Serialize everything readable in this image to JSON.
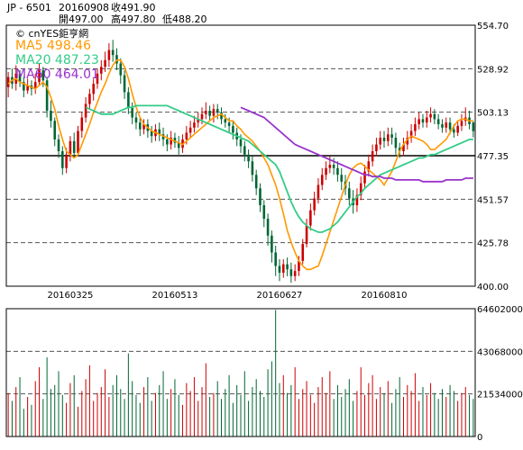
{
  "header": {
    "symbol": "JP - 6501",
    "date": "20160908",
    "close": "收491.90",
    "open": "開497.00",
    "high": "高497.80",
    "low": "低488.20"
  },
  "brand": "cnYES鉅亨網",
  "legend": {
    "ma5": "MA5 498.46",
    "ma20": "MA20 487.23",
    "ma60": "MA60 464.01"
  },
  "colors": {
    "up": "#cc0000",
    "down": "#006633",
    "ma5": "#ff9900",
    "ma20": "#33cc88",
    "ma60": "#9933cc",
    "grid": "#555555"
  },
  "chart_data": [
    {
      "type": "candlestick",
      "ylim": [
        400.0,
        554.7
      ],
      "yticks": [
        "554.70",
        "528.92",
        "503.13",
        "477.35",
        "451.57",
        "425.78",
        "400.00"
      ],
      "xticks": [
        "20160325",
        "20160513",
        "20160627",
        "20160810"
      ],
      "reference_level": 477.35,
      "series": [
        {
          "name": "MA5",
          "values": [
            520,
            522,
            523,
            521,
            520,
            519,
            518,
            517,
            519,
            521,
            518,
            512,
            505,
            495,
            487,
            480,
            478,
            476,
            478,
            484,
            490,
            496,
            503,
            509,
            515,
            520,
            526,
            531,
            534,
            534,
            530,
            523,
            514,
            506,
            500,
            496,
            494,
            492,
            491,
            490,
            489,
            488,
            487,
            486,
            485,
            484,
            486,
            488,
            490,
            492,
            494,
            496,
            498,
            500,
            501,
            502,
            500,
            498,
            498,
            495,
            493,
            490,
            488,
            486,
            483,
            480,
            476,
            472,
            466,
            460,
            452,
            443,
            433,
            426,
            420,
            415,
            412,
            410,
            410,
            411,
            412,
            418,
            425,
            432,
            439,
            446,
            453,
            460,
            466,
            470,
            472,
            473,
            471,
            469,
            467,
            465,
            463,
            460,
            464,
            468,
            474,
            480,
            484,
            487,
            489,
            488,
            487,
            486,
            484,
            481,
            481,
            483,
            485,
            487,
            491,
            495,
            498,
            499,
            499,
            498,
            498
          ]
        },
        {
          "name": "MA20",
          "values": [
            null,
            null,
            null,
            null,
            null,
            null,
            null,
            null,
            null,
            null,
            null,
            null,
            null,
            null,
            null,
            null,
            null,
            null,
            null,
            null,
            506,
            505,
            504,
            503,
            502,
            502,
            502,
            502,
            503,
            504,
            505,
            506,
            506,
            507,
            507,
            507,
            507,
            507,
            507,
            507,
            507,
            507,
            506,
            505,
            504,
            503,
            502,
            501,
            500,
            499,
            498,
            497,
            496,
            495,
            494,
            493,
            492,
            491,
            490,
            489,
            488,
            487,
            486,
            484,
            482,
            480,
            478,
            476,
            474,
            472,
            468,
            462,
            456,
            450,
            445,
            441,
            438,
            436,
            434,
            433,
            432,
            432,
            433,
            434,
            436,
            438,
            441,
            444,
            447,
            450,
            453,
            455,
            458,
            460,
            462,
            464,
            466,
            467,
            468,
            469,
            470,
            471,
            472,
            473,
            474,
            475,
            476,
            476,
            477,
            478,
            478,
            479,
            480,
            481,
            482,
            483,
            484,
            485,
            486,
            487,
            487
          ]
        },
        {
          "name": "MA60",
          "values": [
            null,
            null,
            null,
            null,
            null,
            null,
            null,
            null,
            null,
            null,
            null,
            null,
            null,
            null,
            null,
            null,
            null,
            null,
            null,
            null,
            null,
            null,
            null,
            null,
            null,
            null,
            null,
            null,
            null,
            null,
            null,
            null,
            null,
            null,
            null,
            null,
            null,
            null,
            null,
            null,
            null,
            null,
            null,
            null,
            null,
            null,
            null,
            null,
            null,
            null,
            null,
            null,
            null,
            null,
            null,
            null,
            null,
            null,
            null,
            null,
            506,
            505,
            504,
            503,
            502,
            501,
            500,
            498,
            496,
            494,
            492,
            490,
            488,
            486,
            484,
            483,
            482,
            481,
            480,
            479,
            478,
            477,
            476,
            475,
            474,
            473,
            472,
            471,
            470,
            469,
            468,
            467,
            466,
            466,
            465,
            465,
            465,
            464,
            464,
            464,
            463,
            463,
            463,
            463,
            463,
            463,
            463,
            462,
            462,
            462,
            462,
            462,
            462,
            463,
            463,
            463,
            463,
            463,
            464,
            464,
            464
          ]
        }
      ],
      "candles": [
        [
          518,
          524,
          527,
          512
        ],
        [
          524,
          520,
          529,
          517
        ],
        [
          520,
          526,
          531,
          516
        ],
        [
          526,
          521,
          528,
          518
        ],
        [
          521,
          516,
          524,
          512
        ],
        [
          516,
          519,
          523,
          514
        ],
        [
          519,
          517,
          522,
          513
        ],
        [
          517,
          521,
          526,
          514
        ],
        [
          521,
          528,
          532,
          519
        ],
        [
          528,
          522,
          530,
          518
        ],
        [
          522,
          504,
          524,
          500
        ],
        [
          504,
          498,
          510,
          494
        ],
        [
          498,
          487,
          500,
          483
        ],
        [
          487,
          480,
          490,
          476
        ],
        [
          480,
          470,
          483,
          466
        ],
        [
          470,
          478,
          482,
          467
        ],
        [
          478,
          486,
          489,
          474
        ],
        [
          486,
          479,
          491,
          476
        ],
        [
          479,
          492,
          495,
          477
        ],
        [
          492,
          500,
          503,
          488
        ],
        [
          500,
          508,
          512,
          497
        ],
        [
          508,
          514,
          517,
          505
        ],
        [
          514,
          520,
          523,
          510
        ],
        [
          520,
          526,
          529,
          517
        ],
        [
          526,
          530,
          534,
          522
        ],
        [
          530,
          534,
          539,
          527
        ],
        [
          534,
          540,
          544,
          530
        ],
        [
          540,
          537,
          546,
          533
        ],
        [
          537,
          532,
          541,
          528
        ],
        [
          532,
          525,
          535,
          520
        ],
        [
          525,
          515,
          528,
          511
        ],
        [
          515,
          506,
          518,
          502
        ],
        [
          506,
          500,
          509,
          496
        ],
        [
          500,
          497,
          503,
          493
        ],
        [
          497,
          493,
          500,
          489
        ],
        [
          493,
          496,
          499,
          490
        ],
        [
          496,
          492,
          499,
          488
        ],
        [
          492,
          489,
          495,
          485
        ],
        [
          489,
          493,
          496,
          486
        ],
        [
          493,
          490,
          497,
          486
        ],
        [
          490,
          487,
          494,
          483
        ],
        [
          487,
          484,
          490,
          480
        ],
        [
          484,
          488,
          492,
          481
        ],
        [
          488,
          485,
          491,
          482
        ],
        [
          485,
          482,
          489,
          478
        ],
        [
          482,
          487,
          490,
          479
        ],
        [
          487,
          491,
          495,
          484
        ],
        [
          491,
          494,
          498,
          488
        ],
        [
          494,
          497,
          501,
          491
        ],
        [
          497,
          499,
          503,
          494
        ],
        [
          499,
          502,
          506,
          496
        ],
        [
          502,
          504,
          509,
          499
        ],
        [
          504,
          501,
          507,
          498
        ],
        [
          501,
          505,
          508,
          497
        ],
        [
          505,
          503,
          508,
          499
        ],
        [
          503,
          499,
          506,
          496
        ],
        [
          499,
          497,
          502,
          494
        ],
        [
          497,
          495,
          500,
          491
        ],
        [
          495,
          491,
          498,
          487
        ],
        [
          491,
          487,
          494,
          483
        ],
        [
          487,
          483,
          490,
          479
        ],
        [
          483,
          478,
          486,
          474
        ],
        [
          478,
          474,
          481,
          470
        ],
        [
          474,
          466,
          477,
          462
        ],
        [
          466,
          458,
          469,
          454
        ],
        [
          458,
          448,
          461,
          444
        ],
        [
          448,
          440,
          451,
          435
        ],
        [
          440,
          430,
          443,
          424
        ],
        [
          430,
          420,
          433,
          414
        ],
        [
          420,
          412,
          424,
          406
        ],
        [
          412,
          408,
          416,
          403
        ],
        [
          408,
          413,
          416,
          405
        ],
        [
          413,
          410,
          417,
          406
        ],
        [
          410,
          406,
          414,
          402
        ],
        [
          406,
          409,
          413,
          403
        ],
        [
          409,
          415,
          418,
          406
        ],
        [
          415,
          425,
          428,
          413
        ],
        [
          425,
          436,
          440,
          423
        ],
        [
          436,
          445,
          449,
          433
        ],
        [
          445,
          452,
          456,
          442
        ],
        [
          452,
          460,
          464,
          449
        ],
        [
          460,
          466,
          470,
          457
        ],
        [
          466,
          470,
          474,
          463
        ],
        [
          470,
          472,
          477,
          467
        ],
        [
          472,
          470,
          476,
          466
        ],
        [
          470,
          466,
          474,
          462
        ],
        [
          466,
          462,
          470,
          457
        ],
        [
          462,
          458,
          466,
          454
        ],
        [
          458,
          452,
          462,
          448
        ],
        [
          452,
          448,
          457,
          443
        ],
        [
          448,
          454,
          458,
          444
        ],
        [
          454,
          461,
          465,
          451
        ],
        [
          461,
          468,
          472,
          458
        ],
        [
          468,
          474,
          478,
          465
        ],
        [
          474,
          480,
          484,
          471
        ],
        [
          480,
          484,
          488,
          477
        ],
        [
          484,
          488,
          492,
          481
        ],
        [
          488,
          486,
          492,
          482
        ],
        [
          486,
          490,
          494,
          483
        ],
        [
          490,
          488,
          494,
          484
        ],
        [
          488,
          482,
          491,
          478
        ],
        [
          482,
          480,
          485,
          476
        ],
        [
          480,
          484,
          488,
          477
        ],
        [
          484,
          488,
          492,
          481
        ],
        [
          488,
          492,
          496,
          485
        ],
        [
          492,
          496,
          500,
          489
        ],
        [
          496,
          499,
          503,
          493
        ],
        [
          499,
          497,
          502,
          494
        ],
        [
          497,
          500,
          504,
          494
        ],
        [
          500,
          502,
          506,
          497
        ],
        [
          502,
          499,
          505,
          496
        ],
        [
          499,
          496,
          502,
          493
        ],
        [
          496,
          494,
          499,
          491
        ],
        [
          494,
          497,
          500,
          491
        ],
        [
          497,
          493,
          500,
          490
        ],
        [
          493,
          491,
          496,
          488
        ],
        [
          491,
          495,
          498,
          489
        ],
        [
          495,
          498,
          502,
          492
        ],
        [
          498,
          500,
          506,
          495
        ],
        [
          500,
          496,
          504,
          493
        ],
        [
          497,
          491.9,
          497.8,
          488.2
        ]
      ]
    },
    {
      "type": "bar",
      "name": "volume",
      "ylim": [
        0,
        64602000
      ],
      "yticks": [
        "64602000",
        "43068000",
        "21534000",
        "0"
      ],
      "values": [
        22,
        18,
        25,
        30,
        14,
        20,
        16,
        28,
        35,
        19,
        40,
        24,
        26,
        33,
        21,
        17,
        27,
        31,
        15,
        23,
        29,
        36,
        18,
        22,
        25,
        34,
        20,
        26,
        31,
        24,
        19,
        42,
        28,
        21,
        17,
        25,
        30,
        18,
        22,
        26,
        33,
        19,
        24,
        29,
        21,
        16,
        27,
        23,
        30,
        18,
        25,
        37,
        20,
        22,
        28,
        19,
        24,
        31,
        17,
        26,
        21,
        33,
        18,
        25,
        29,
        23,
        20,
        34,
        38,
        64,
        27,
        31,
        22,
        26,
        35,
        19,
        24,
        28,
        21,
        17,
        25,
        30,
        22,
        33,
        19,
        26,
        20,
        24,
        29,
        18,
        23,
        35,
        21,
        27,
        31,
        19,
        25,
        22,
        28,
        17,
        24,
        30,
        20,
        26,
        23,
        32,
        18,
        25,
        21,
        27,
        22,
        19,
        24,
        20,
        26,
        23,
        18,
        22,
        25,
        21,
        19
      ]
    }
  ]
}
